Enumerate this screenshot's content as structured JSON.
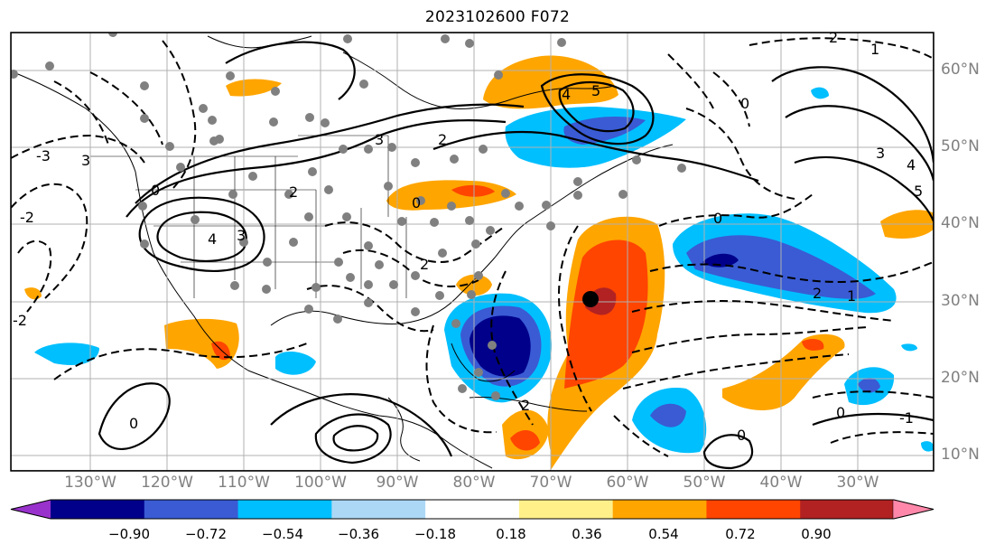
{
  "title": "2023102600 F072",
  "lat_labels": [
    "60°N",
    "50°N",
    "40°N",
    "30°N",
    "20°N",
    "10°N"
  ],
  "lon_labels": [
    "130°W",
    "120°W",
    "110°W",
    "100°W",
    "90°W",
    "80°W",
    "70°W",
    "60°W",
    "50°W",
    "40°W",
    "30°W"
  ],
  "colorbar": {
    "tick_labels": [
      "−0.90",
      "−0.72",
      "−0.54",
      "−0.36",
      "−0.18",
      "0.18",
      "0.36",
      "0.54",
      "0.72",
      "0.90"
    ],
    "colors": [
      "#9932cc",
      "#00008b",
      "#3a5bd4",
      "#00bfff",
      "#add8f5",
      "#ffffff",
      "#fff08a",
      "#ffa500",
      "#ff4500",
      "#b22222",
      "#ff88aa"
    ]
  },
  "contour_labels": [
    "-3",
    "3",
    "2",
    "-2",
    "0",
    "1",
    "4",
    "5",
    "-1"
  ],
  "marker": "black-dot-storm-center"
}
